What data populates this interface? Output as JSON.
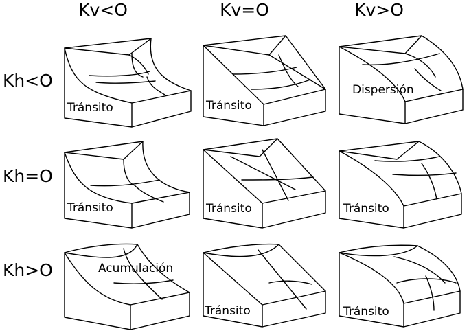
{
  "column_headers": [
    "Kv<O",
    "Kv=O",
    "Kv>O"
  ],
  "row_headers": [
    "Kh<O",
    "Kh=O",
    "Kh>O"
  ],
  "cells": [
    [
      "Tránsito",
      "Tránsito",
      "Dispersión"
    ],
    [
      "Tránsito",
      "Tránsito",
      "Tránsito"
    ],
    [
      "Acumulación",
      "Tránsito",
      "Tránsito"
    ]
  ]
}
